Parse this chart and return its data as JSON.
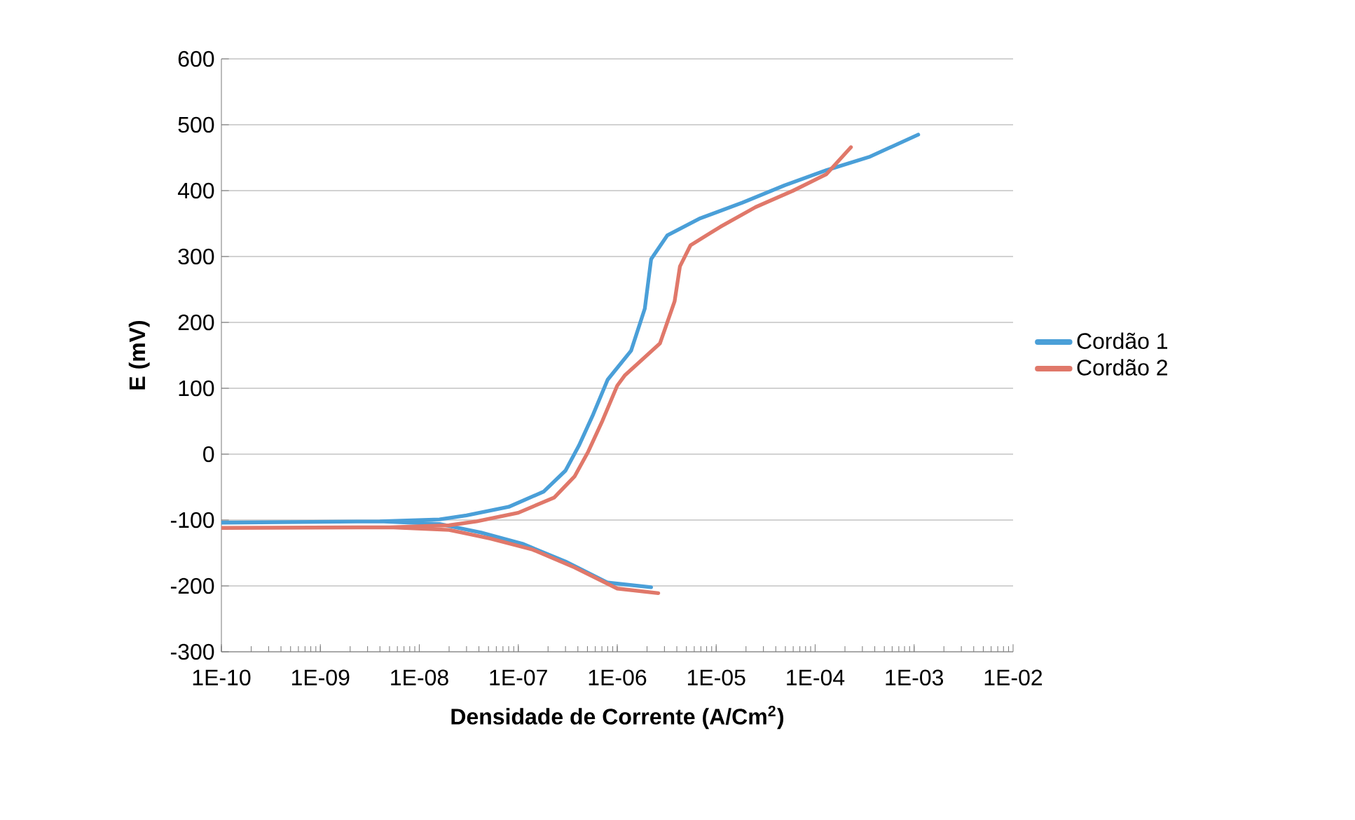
{
  "chart_data": {
    "type": "line",
    "xlabel": "Densidade de Corrente (A/Cm$^{2}$)",
    "ylabel": "E (mV)",
    "log": "x",
    "grid": "y",
    "legend": "right",
    "marker": "none",
    "line_style": "solid",
    "xlim": [
      1e-10,
      0.01
    ],
    "ylim": [
      -300,
      600
    ],
    "xticks": [
      {
        "value": 1e-10,
        "label": "1E-10"
      },
      {
        "value": 1e-09,
        "label": "1E-09"
      },
      {
        "value": 1e-08,
        "label": "1E-08"
      },
      {
        "value": 1e-07,
        "label": "1E-07"
      },
      {
        "value": 1e-06,
        "label": "1E-06"
      },
      {
        "value": 1e-05,
        "label": "1E-05"
      },
      {
        "value": 0.0001,
        "label": "1E-04"
      },
      {
        "value": 0.001,
        "label": "1E-03"
      },
      {
        "value": 0.01,
        "label": "1E-02"
      }
    ],
    "yticks": [
      -300,
      -200,
      -100,
      0,
      100,
      200,
      300,
      400,
      500,
      600
    ],
    "series": [
      {
        "name": "Cordão 1",
        "color": "#4a9fd8",
        "x": [
          2.2e-06,
          8e-07,
          3e-07,
          1.1e-07,
          4.2e-08,
          1.6e-08,
          4e-09,
          1e-10,
          1e-10,
          4e-09,
          1.6e-08,
          3e-08,
          8e-08,
          1.8e-07,
          3e-07,
          4.1e-07,
          5.7e-07,
          8e-07,
          1.38e-06,
          1.9e-06,
          2.2e-06,
          3.2e-06,
          6.9e-06,
          1.85e-05,
          4.9e-05,
          0.00013,
          0.00035,
          0.0011
        ],
        "values": [
          -202,
          -195,
          -163,
          -136,
          -119,
          -106,
          -102,
          -104,
          -104,
          -102,
          -99,
          -93,
          -80,
          -57,
          -25,
          13,
          60,
          113,
          157,
          221,
          296,
          332,
          358,
          382,
          408,
          431,
          451,
          485
        ]
      },
      {
        "name": "Cordão 2",
        "color": "#e0786a",
        "x": [
          2.6e-06,
          1e-06,
          3.7e-07,
          1.4e-07,
          5.2e-08,
          2e-08,
          5e-09,
          1e-10,
          1e-10,
          5e-09,
          2e-08,
          3.8e-08,
          1e-07,
          2.3e-07,
          3.7e-07,
          5.1e-07,
          7.1e-07,
          1e-06,
          1.2e-06,
          2.7e-06,
          3.8e-06,
          4.3e-06,
          5.5e-06,
          1.1e-05,
          2.5e-05,
          6e-05,
          0.00013,
          0.00023
        ],
        "values": [
          -211,
          -204,
          -172,
          -145,
          -128,
          -115,
          -111,
          -112,
          -112,
          -111,
          -108,
          -102,
          -89,
          -66,
          -34,
          4,
          51,
          104,
          120,
          168,
          232,
          285,
          317,
          345,
          375,
          400,
          425,
          466
        ]
      }
    ]
  }
}
